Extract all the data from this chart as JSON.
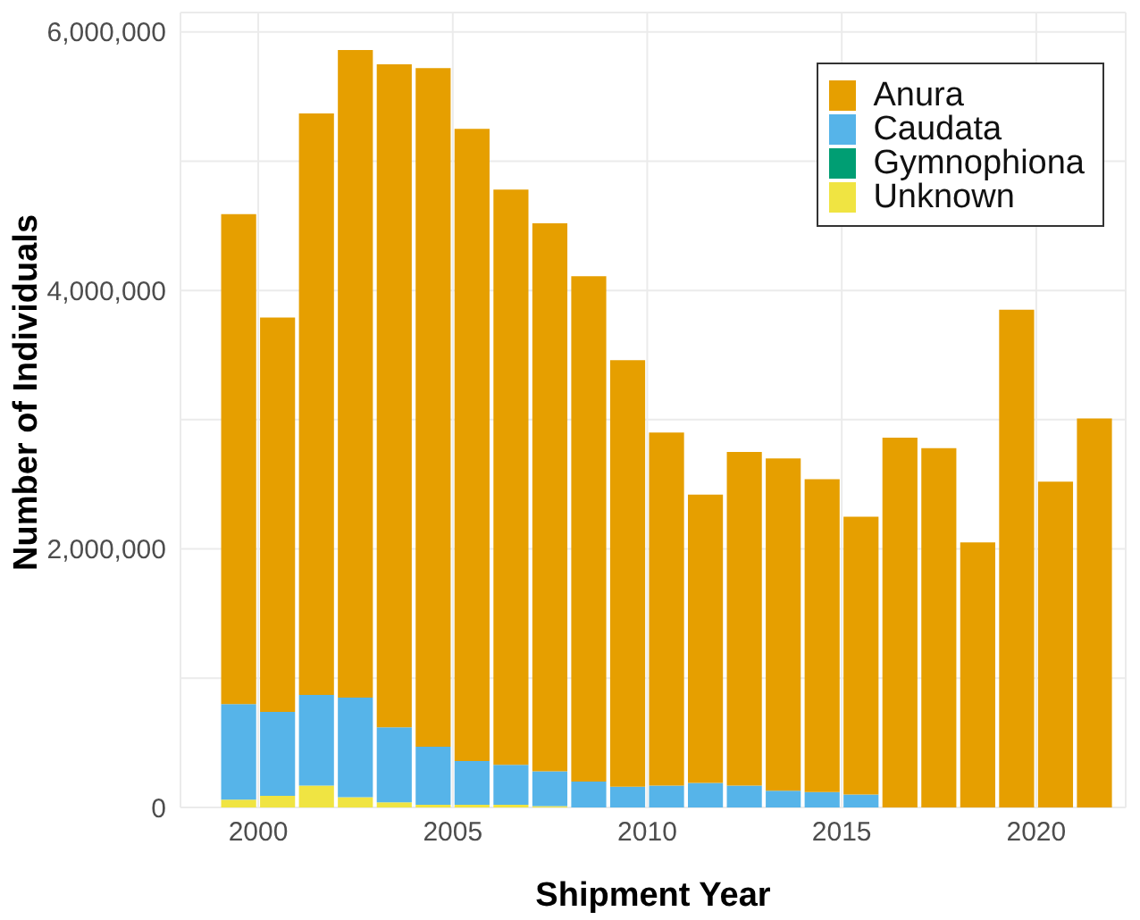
{
  "chart_data": {
    "type": "bar",
    "stacked": true,
    "xlabel": "Shipment Year",
    "ylabel": "Number of Individuals",
    "x": [
      1999.5,
      2000.5,
      2001.5,
      2002.5,
      2003.5,
      2004.5,
      2005.5,
      2006.5,
      2007.5,
      2008.5,
      2009.5,
      2010.5,
      2011.5,
      2012.5,
      2013.5,
      2014.5,
      2015.5,
      2016.5,
      2017.5,
      2018.5,
      2019.5,
      2020.5,
      2021.5
    ],
    "series": [
      {
        "name": "Unknown",
        "color": "#f0e442",
        "values": [
          60000,
          90000,
          170000,
          80000,
          40000,
          20000,
          20000,
          20000,
          10000,
          0,
          0,
          0,
          0,
          0,
          0,
          0,
          0,
          0,
          0,
          0,
          0,
          0,
          0
        ]
      },
      {
        "name": "Gymnophiona",
        "color": "#009e73",
        "values": [
          0,
          0,
          0,
          0,
          0,
          0,
          0,
          0,
          0,
          0,
          0,
          0,
          0,
          0,
          0,
          0,
          0,
          0,
          0,
          0,
          0,
          0,
          0
        ]
      },
      {
        "name": "Caudata",
        "color": "#56b4e9",
        "values": [
          740000,
          650000,
          700000,
          770000,
          580000,
          450000,
          340000,
          310000,
          270000,
          200000,
          160000,
          170000,
          190000,
          170000,
          130000,
          120000,
          100000,
          0,
          0,
          0,
          0,
          0,
          0
        ]
      },
      {
        "name": "Anura",
        "color": "#e69f00",
        "values": [
          3790000,
          3050000,
          4500000,
          5010000,
          5130000,
          5250000,
          4890000,
          4450000,
          4240000,
          3910000,
          3300000,
          2730000,
          2230000,
          2580000,
          2570000,
          2420000,
          2150000,
          2860000,
          2780000,
          2050000,
          3850000,
          2520000,
          3010000
        ]
      }
    ],
    "xlim": [
      1998,
      2022.3
    ],
    "xticks": [
      2000,
      2005,
      2010,
      2015,
      2020
    ],
    "ylim": [
      0,
      6150000
    ],
    "yticks": [
      {
        "value": 0,
        "label": "0"
      },
      {
        "value": 1000000,
        "label": null
      },
      {
        "value": 2000000,
        "label": "2,000,000"
      },
      {
        "value": 3000000,
        "label": null
      },
      {
        "value": 4000000,
        "label": "4,000,000"
      },
      {
        "value": 5000000,
        "label": null
      },
      {
        "value": 6000000,
        "label": "6,000,000"
      }
    ],
    "grid": true,
    "legend": "top right"
  }
}
